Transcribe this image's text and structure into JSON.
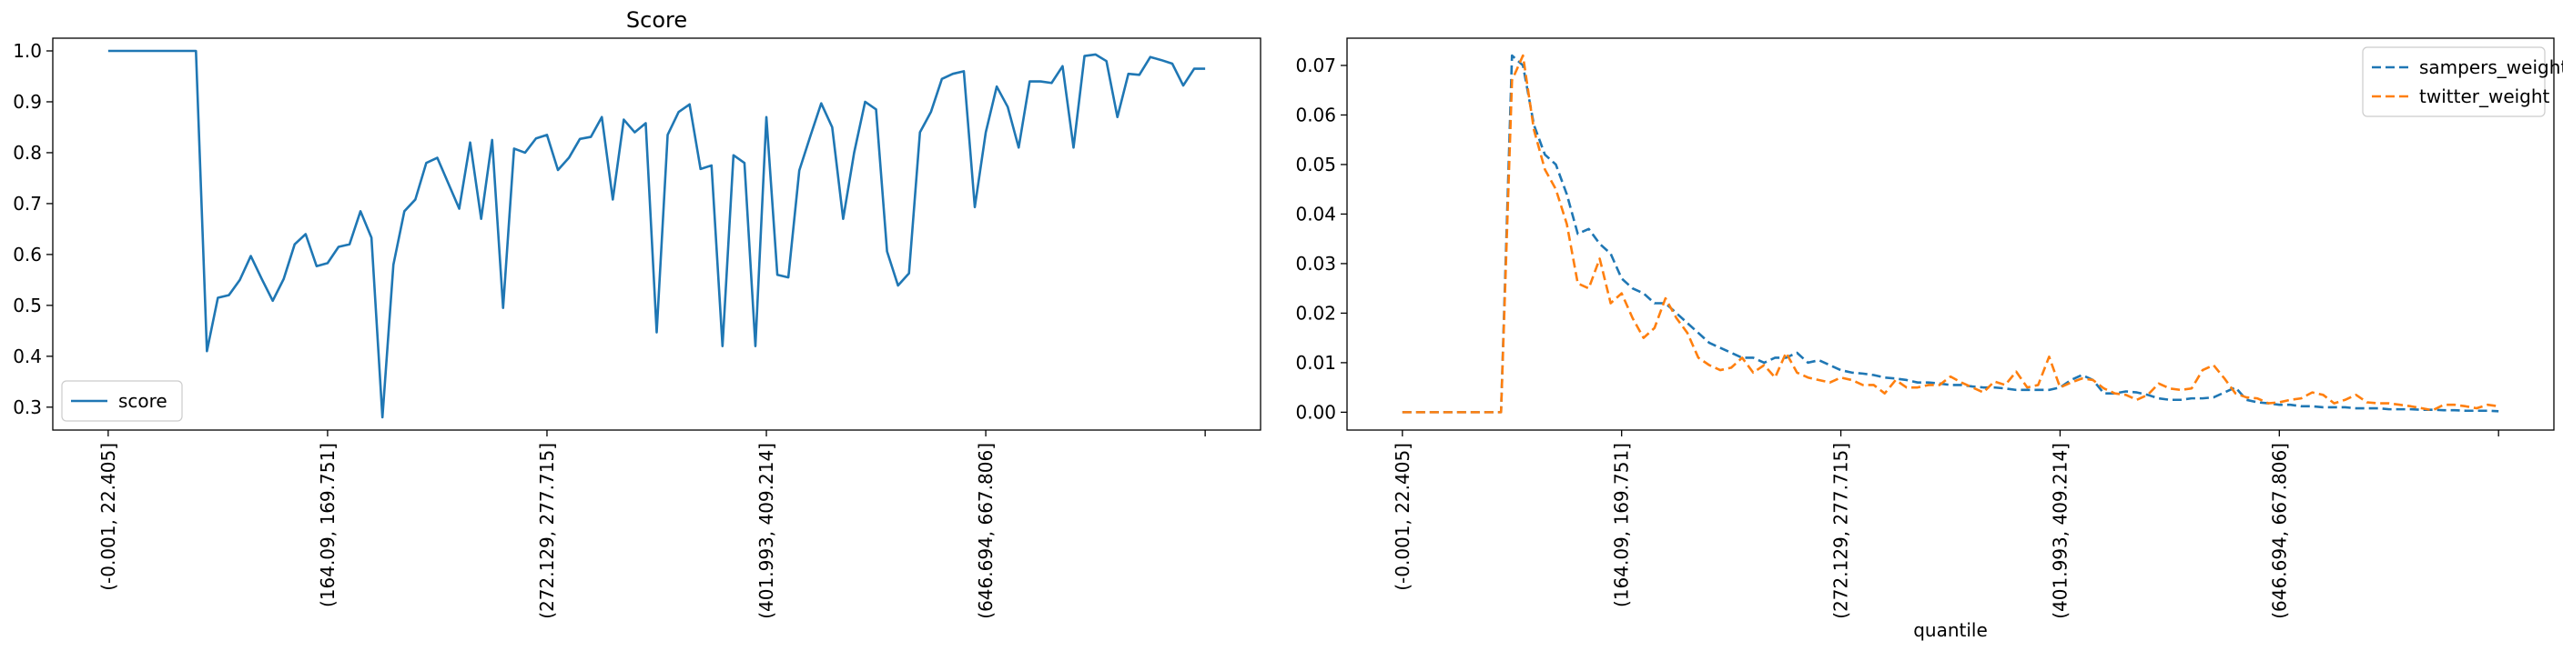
{
  "chart_data": [
    {
      "type": "line",
      "title": "Score",
      "xlabel": "",
      "ylabel": "",
      "x_count": 101,
      "xticks": [
        0,
        20,
        40,
        60,
        80,
        100
      ],
      "xtick_labels": [
        "(-0.001, 22.405]",
        "(164.09, 169.751]",
        "(272.129, 277.715]",
        "(401.993, 409.214]",
        "(646.694, 667.806]",
        ""
      ],
      "ylim": [
        0.255,
        1.025
      ],
      "yticks": [
        0.3,
        0.4,
        0.5,
        0.6,
        0.7,
        0.8,
        0.9,
        1.0
      ],
      "ytick_labels": [
        "0.3",
        "0.4",
        "0.5",
        "0.6",
        "0.7",
        "0.8",
        "0.9",
        "1.0"
      ],
      "grid": false,
      "legend_position": "bottom-left",
      "series": [
        {
          "name": "score",
          "color": "#1f77b4",
          "style": "solid",
          "values": [
            1.0,
            1.0,
            1.0,
            1.0,
            1.0,
            1.0,
            1.0,
            1.0,
            1.0,
            0.41,
            0.515,
            0.52,
            0.55,
            0.597,
            0.552,
            0.509,
            0.552,
            0.62,
            0.64,
            0.577,
            0.583,
            0.615,
            0.62,
            0.685,
            0.633,
            0.28,
            0.58,
            0.685,
            0.708,
            0.78,
            0.79,
            0.74,
            0.69,
            0.82,
            0.67,
            0.825,
            0.495,
            0.808,
            0.8,
            0.828,
            0.835,
            0.766,
            0.79,
            0.827,
            0.831,
            0.87,
            0.708,
            0.865,
            0.84,
            0.858,
            0.447,
            0.835,
            0.88,
            0.895,
            0.768,
            0.775,
            0.42,
            0.795,
            0.78,
            0.42,
            0.87,
            0.56,
            0.555,
            0.765,
            0.832,
            0.897,
            0.85,
            0.67,
            0.8,
            0.9,
            0.885,
            0.606,
            0.539,
            0.563,
            0.84,
            0.88,
            0.945,
            0.955,
            0.96,
            0.693,
            0.84,
            0.93,
            0.89,
            0.81,
            0.94,
            0.94,
            0.937,
            0.97,
            0.81,
            0.99,
            0.993,
            0.98,
            0.87,
            0.955,
            0.953,
            0.988,
            0.982,
            0.975,
            0.932,
            0.965,
            0.965
          ]
        }
      ]
    },
    {
      "type": "line",
      "title": "",
      "xlabel": "quantile",
      "ylabel": "",
      "x_count": 101,
      "xticks": [
        0,
        20,
        40,
        60,
        80,
        100
      ],
      "xtick_labels": [
        "(-0.001, 22.405]",
        "(164.09, 169.751]",
        "(272.129, 277.715]",
        "(401.993, 409.214]",
        "(646.694, 667.806]",
        ""
      ],
      "ylim": [
        -0.0036,
        0.0755
      ],
      "yticks": [
        0.0,
        0.01,
        0.02,
        0.03,
        0.04,
        0.05,
        0.06,
        0.07
      ],
      "ytick_labels": [
        "0.00",
        "0.01",
        "0.02",
        "0.03",
        "0.04",
        "0.05",
        "0.06",
        "0.07"
      ],
      "grid": false,
      "legend_position": "top-right",
      "series": [
        {
          "name": "sampers_weight",
          "color": "#1f77b4",
          "style": "dashed",
          "values": [
            0.0,
            0.0,
            0.0,
            0.0,
            0.0,
            0.0,
            0.0,
            0.0,
            0.0,
            0.0,
            0.072,
            0.07,
            0.058,
            0.052,
            0.05,
            0.044,
            0.036,
            0.037,
            0.034,
            0.032,
            0.027,
            0.025,
            0.024,
            0.022,
            0.022,
            0.02,
            0.018,
            0.016,
            0.014,
            0.013,
            0.012,
            0.011,
            0.011,
            0.01,
            0.011,
            0.011,
            0.012,
            0.01,
            0.0105,
            0.0095,
            0.0085,
            0.008,
            0.0078,
            0.0075,
            0.007,
            0.0068,
            0.0065,
            0.006,
            0.006,
            0.0058,
            0.0055,
            0.0055,
            0.0052,
            0.005,
            0.005,
            0.0048,
            0.0045,
            0.0045,
            0.0045,
            0.0045,
            0.005,
            0.0065,
            0.0075,
            0.0065,
            0.0038,
            0.0038,
            0.0042,
            0.004,
            0.0035,
            0.0028,
            0.0025,
            0.0025,
            0.0028,
            0.0028,
            0.003,
            0.004,
            0.005,
            0.0025,
            0.002,
            0.0018,
            0.0015,
            0.0015,
            0.0012,
            0.0012,
            0.001,
            0.001,
            0.001,
            0.0008,
            0.0008,
            0.0008,
            0.0006,
            0.0006,
            0.0006,
            0.0005,
            0.0005,
            0.0004,
            0.0004,
            0.0003,
            0.0003,
            0.0003,
            0.0002
          ]
        },
        {
          "name": "twitter_weight",
          "color": "#ff7f0e",
          "style": "dashed",
          "values": [
            0.0,
            0.0,
            0.0,
            0.0,
            0.0,
            0.0,
            0.0,
            0.0,
            0.0,
            0.0,
            0.067,
            0.072,
            0.057,
            0.049,
            0.045,
            0.038,
            0.026,
            0.025,
            0.031,
            0.022,
            0.024,
            0.019,
            0.015,
            0.017,
            0.023,
            0.019,
            0.016,
            0.011,
            0.0095,
            0.0085,
            0.009,
            0.011,
            0.008,
            0.0095,
            0.007,
            0.012,
            0.008,
            0.007,
            0.0065,
            0.006,
            0.007,
            0.0065,
            0.0055,
            0.0055,
            0.0038,
            0.0065,
            0.005,
            0.005,
            0.0055,
            0.0055,
            0.0072,
            0.006,
            0.005,
            0.004,
            0.0062,
            0.0055,
            0.0082,
            0.005,
            0.0055,
            0.0112,
            0.005,
            0.006,
            0.0068,
            0.0065,
            0.0048,
            0.0038,
            0.0035,
            0.0025,
            0.0035,
            0.0058,
            0.0048,
            0.0045,
            0.0048,
            0.0085,
            0.0095,
            0.0068,
            0.0038,
            0.003,
            0.0028,
            0.0018,
            0.002,
            0.0025,
            0.0028,
            0.004,
            0.0035,
            0.0018,
            0.0025,
            0.0035,
            0.002,
            0.0018,
            0.0018,
            0.0015,
            0.0012,
            0.0008,
            0.0004,
            0.0015,
            0.0015,
            0.0012,
            0.0008,
            0.0015,
            0.0012
          ]
        }
      ]
    }
  ]
}
